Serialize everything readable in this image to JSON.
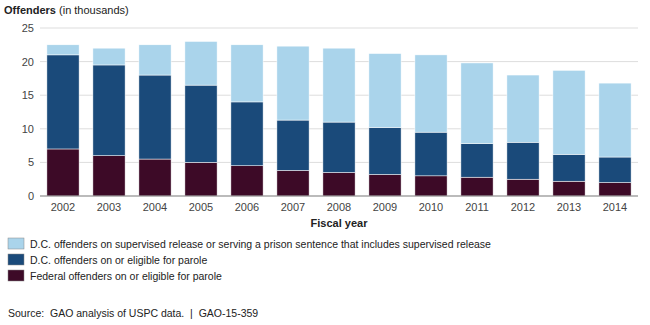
{
  "chart_data": {
    "type": "bar",
    "stacked": true,
    "y_label": "Offenders (in thousands)",
    "x_label": "Fiscal year",
    "annotations": [
      "Source:  GAO analysis of USPC data.  |  GAO-15-359"
    ],
    "categories": [
      "2002",
      "2003",
      "2004",
      "2005",
      "2006",
      "2007",
      "2008",
      "2009",
      "2010",
      "2011",
      "2012",
      "2013",
      "2014"
    ],
    "series": [
      {
        "name": "Federal offenders on or eligible for parole",
        "color": "#3d0a27",
        "values": [
          7.0,
          6.0,
          5.5,
          5.0,
          4.5,
          3.8,
          3.5,
          3.2,
          3.0,
          2.8,
          2.5,
          2.2,
          2.0
        ]
      },
      {
        "name": "D.C. offenders on or eligible for parole",
        "color": "#1a4a7a",
        "values": [
          14.0,
          13.5,
          12.5,
          11.5,
          9.5,
          7.5,
          7.5,
          7.0,
          6.5,
          5.0,
          5.5,
          4.0,
          3.8
        ]
      },
      {
        "name": "D.C. offenders on supervised release or serving a prison sentence that includes supervised release",
        "color": "#aad4eb",
        "values": [
          1.5,
          2.5,
          4.5,
          6.5,
          8.5,
          11.0,
          11.0,
          11.0,
          11.5,
          12.0,
          10.0,
          12.5,
          11.0
        ]
      }
    ],
    "ylim": [
      0,
      25
    ],
    "yticks": [
      0,
      5,
      10,
      15,
      20,
      25
    ],
    "grid": true,
    "legend": "bottom"
  }
}
